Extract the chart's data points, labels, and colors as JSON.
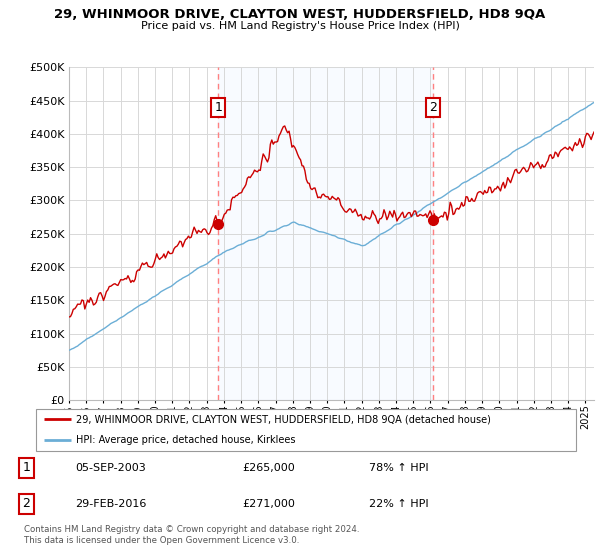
{
  "title": "29, WHINMOOR DRIVE, CLAYTON WEST, HUDDERSFIELD, HD8 9QA",
  "subtitle": "Price paid vs. HM Land Registry's House Price Index (HPI)",
  "legend_line1": "29, WHINMOOR DRIVE, CLAYTON WEST, HUDDERSFIELD, HD8 9QA (detached house)",
  "legend_line2": "HPI: Average price, detached house, Kirklees",
  "annotation1_label": "1",
  "annotation1_date": "05-SEP-2003",
  "annotation1_price": "£265,000",
  "annotation1_hpi": "78% ↑ HPI",
  "annotation2_label": "2",
  "annotation2_date": "29-FEB-2016",
  "annotation2_price": "£271,000",
  "annotation2_hpi": "22% ↑ HPI",
  "footer": "Contains HM Land Registry data © Crown copyright and database right 2024.\nThis data is licensed under the Open Government Licence v3.0.",
  "hpi_color": "#6baed6",
  "price_color": "#cc0000",
  "marker_color": "#cc0000",
  "vline_color": "#ff8080",
  "annotation_box_color": "#cc0000",
  "shade_color": "#ddeeff",
  "ylim": [
    0,
    500000
  ],
  "yticks": [
    0,
    50000,
    100000,
    150000,
    200000,
    250000,
    300000,
    350000,
    400000,
    450000,
    500000
  ],
  "sale1_x": 2003.67,
  "sale1_y": 265000,
  "sale2_x": 2016.17,
  "sale2_y": 271000,
  "xmin": 1995,
  "xmax": 2025.5
}
